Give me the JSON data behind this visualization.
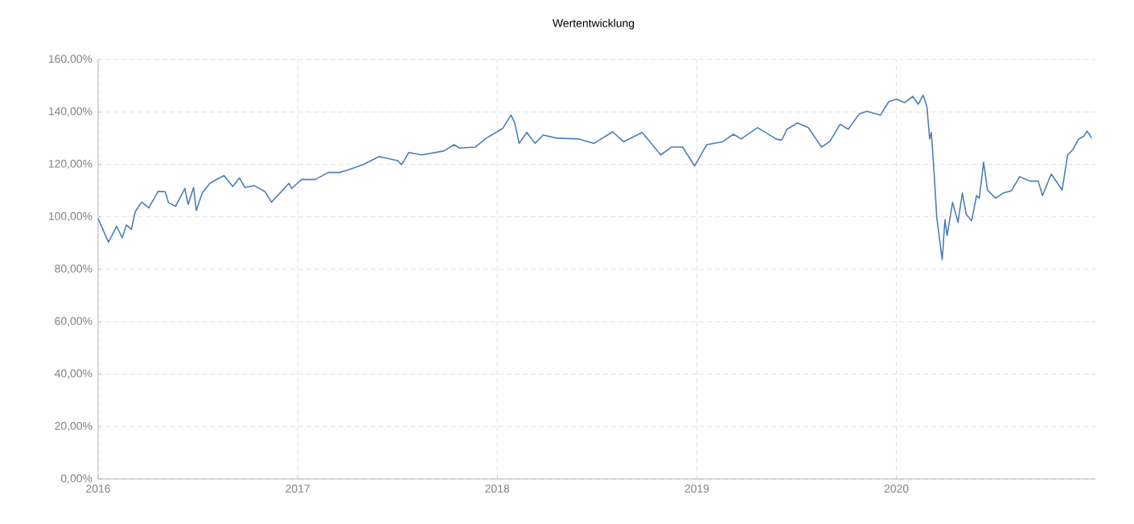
{
  "chart_data": {
    "type": "line",
    "title": "Wertentwicklung",
    "x": [
      "2016-01-01",
      "2016-01-20",
      "2016-02-04",
      "2016-02-14",
      "2016-02-22",
      "2016-03-02",
      "2016-03-09",
      "2016-03-21",
      "2016-04-03",
      "2016-04-20",
      "2016-05-03",
      "2016-05-09",
      "2016-05-22",
      "2016-06-08",
      "2016-06-14",
      "2016-06-24",
      "2016-06-29",
      "2016-07-10",
      "2016-07-24",
      "2016-08-10",
      "2016-08-19",
      "2016-09-04",
      "2016-09-16",
      "2016-09-26",
      "2016-10-13",
      "2016-11-02",
      "2016-11-14",
      "2016-11-28",
      "2016-12-16",
      "2016-12-21",
      "2017-01-08",
      "2017-02-02",
      "2017-02-26",
      "2017-03-18",
      "2017-04-01",
      "2017-05-01",
      "2017-05-30",
      "2017-07-03",
      "2017-07-10",
      "2017-07-23",
      "2017-08-16",
      "2017-09-25",
      "2017-10-14",
      "2017-10-24",
      "2017-11-22",
      "2017-12-12",
      "2018-01-11",
      "2018-01-26",
      "2018-02-02",
      "2018-02-10",
      "2018-02-24",
      "2018-03-11",
      "2018-03-26",
      "2018-04-19",
      "2018-05-29",
      "2018-06-27",
      "2018-07-31",
      "2018-08-20",
      "2018-09-23",
      "2018-10-27",
      "2018-11-16",
      "2018-12-06",
      "2018-12-28",
      "2019-01-19",
      "2019-02-17",
      "2019-03-09",
      "2019-03-23",
      "2019-04-22",
      "2019-05-26",
      "2019-06-05",
      "2019-06-15",
      "2019-07-04",
      "2019-07-24",
      "2019-08-17",
      "2019-09-01",
      "2019-09-20",
      "2019-10-05",
      "2019-10-25",
      "2019-11-08",
      "2019-12-03",
      "2019-12-18",
      "2020-01-01",
      "2020-01-16",
      "2020-01-31",
      "2020-02-10",
      "2020-02-19",
      "2020-02-26",
      "2020-03-02",
      "2020-03-05",
      "2020-03-10",
      "2020-03-15",
      "2020-03-25",
      "2020-03-30",
      "2020-04-03",
      "2020-04-13",
      "2020-04-23",
      "2020-05-01",
      "2020-05-08",
      "2020-05-18",
      "2020-05-27",
      "2020-06-01",
      "2020-06-09",
      "2020-06-16",
      "2020-07-01",
      "2020-07-15",
      "2020-07-30",
      "2020-08-14",
      "2020-09-02",
      "2020-09-17",
      "2020-09-25",
      "2020-10-11",
      "2020-10-31",
      "2020-11-10",
      "2020-11-20",
      "2020-11-30",
      "2020-12-09",
      "2020-12-16",
      "2020-12-24"
    ],
    "series": [
      {
        "color": "#4a7fb5",
        "values": [
          99.3,
          90.3,
          96.4,
          92.0,
          96.9,
          95.2,
          102.0,
          105.6,
          103.4,
          109.7,
          109.6,
          105.4,
          104.0,
          110.8,
          104.7,
          111.2,
          102.4,
          109.1,
          112.8,
          114.8,
          115.7,
          111.6,
          114.8,
          111.2,
          111.9,
          109.6,
          105.6,
          108.7,
          112.8,
          110.8,
          114.2,
          114.2,
          116.9,
          116.9,
          117.7,
          119.9,
          123.0,
          121.4,
          119.9,
          124.5,
          123.6,
          125.1,
          127.5,
          126.2,
          126.6,
          130.0,
          133.7,
          138.8,
          135.8,
          128.0,
          132.2,
          128.0,
          131.2,
          130.0,
          129.7,
          128.0,
          132.4,
          128.6,
          132.2,
          123.6,
          126.6,
          126.6,
          119.4,
          127.5,
          128.6,
          131.5,
          129.7,
          134.0,
          129.7,
          129.2,
          133.4,
          135.8,
          134.0,
          126.6,
          128.6,
          135.3,
          133.4,
          139.2,
          140.2,
          138.8,
          143.9,
          144.9,
          143.5,
          145.9,
          142.9,
          146.4,
          141.9,
          129.7,
          132.2,
          117.3,
          99.9,
          83.6,
          98.9,
          92.8,
          105.5,
          97.9,
          109.1,
          101.0,
          98.5,
          108.1,
          107.1,
          120.8,
          110.2,
          107.1,
          109.1,
          109.9,
          115.3,
          113.6,
          113.6,
          108.1,
          116.3,
          110.2,
          123.6,
          125.7,
          129.7,
          130.6,
          132.7,
          130.0
        ]
      }
    ],
    "xlim": [
      "2016-01-01",
      "2020-12-31"
    ],
    "xticks": [
      "2016",
      "2017",
      "2018",
      "2019",
      "2020"
    ],
    "ylim": [
      0,
      160
    ],
    "yticks": [
      {
        "value": 0,
        "label": "0,00%"
      },
      {
        "value": 20,
        "label": "20,00%"
      },
      {
        "value": 40,
        "label": "40,00%"
      },
      {
        "value": 60,
        "label": "60,00%"
      },
      {
        "value": 80,
        "label": "80,00%"
      },
      {
        "value": 100,
        "label": "100,00%"
      },
      {
        "value": 120,
        "label": "120,00%"
      },
      {
        "value": 140,
        "label": "140,00%"
      },
      {
        "value": 160,
        "label": "160,00%"
      }
    ],
    "grid": true,
    "legend": false,
    "marker": "none",
    "line_style": "solid"
  }
}
